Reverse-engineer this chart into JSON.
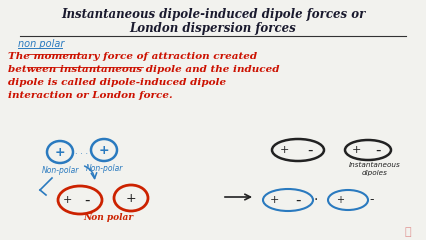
{
  "title_line1": "Instantaneous dipole-induced dipole forces or",
  "title_line2": "London dispersion forces",
  "title_color": "#1a1a2e",
  "non_polar_label": "non polar",
  "non_polar_label_color": "#2a7abf",
  "body_text_line1": "The momentary force of attraction created",
  "body_text_line2": "between instantaneous dipole and the induced",
  "body_text_line3": "dipole is called dipole-induced dipole",
  "body_text_line4": "interaction or London force.",
  "body_text_color": "#cc1100",
  "bg_color": "#f2f2ee",
  "blue_color": "#2a7abf",
  "red_color": "#cc2200",
  "dark_color": "#222222",
  "watermark_color": "#cc3333"
}
